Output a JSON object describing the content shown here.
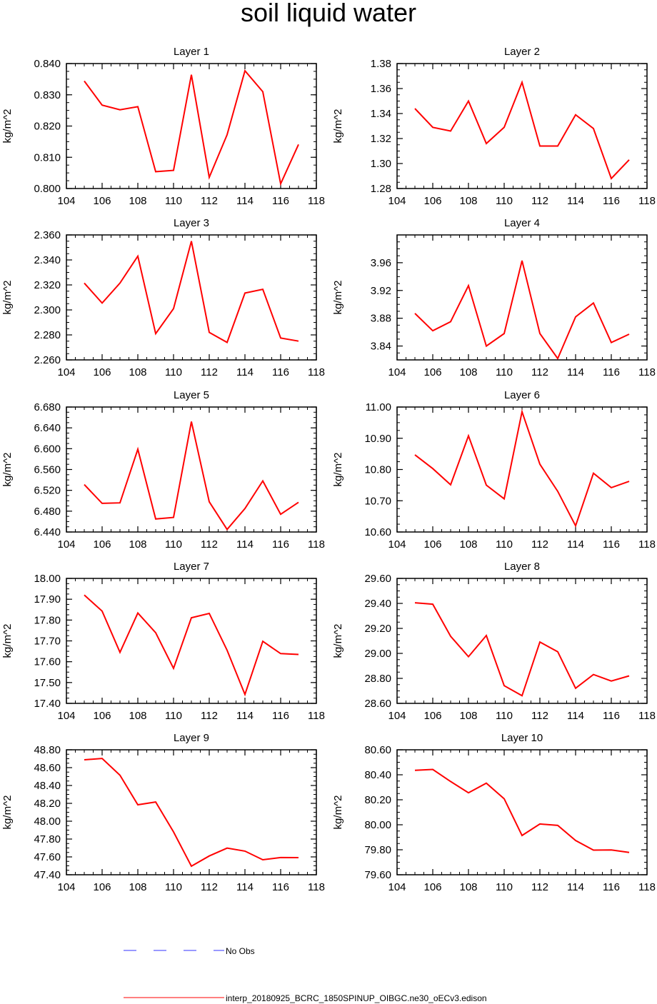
{
  "title": "soil liquid water",
  "legend": {
    "items": [
      {
        "label": "No Obs",
        "color": "#3333ff",
        "style": "dashed"
      },
      {
        "label": "interp_20180925_BCRC_1850SPINUP_OIBGC.ne30_oECv3.edison",
        "color": "#ff0000",
        "style": "solid"
      }
    ]
  },
  "chart_data": [
    {
      "type": "line",
      "title": "Layer 1",
      "ylabel": "kg/m^2",
      "xlim": [
        104,
        118
      ],
      "xticks": [
        104,
        106,
        108,
        110,
        112,
        114,
        116,
        118
      ],
      "ylim": [
        0.8,
        0.84
      ],
      "yticks": [
        0.8,
        0.81,
        0.82,
        0.83,
        0.84
      ],
      "ytick_labels": [
        "0.800",
        "0.810",
        "0.820",
        "0.830",
        "0.840"
      ],
      "x": [
        105,
        106,
        107,
        108,
        109,
        110,
        111,
        112,
        113,
        114,
        115,
        116,
        117
      ],
      "series": [
        {
          "color": "#ff0000",
          "values": [
            0.8344,
            0.8267,
            0.8252,
            0.8262,
            0.8054,
            0.8058,
            0.8364,
            0.8036,
            0.8172,
            0.8377,
            0.831,
            0.8015,
            0.8141
          ]
        }
      ]
    },
    {
      "type": "line",
      "title": "Layer 2",
      "ylabel": "kg/m^2",
      "xlim": [
        104,
        118
      ],
      "xticks": [
        104,
        106,
        108,
        110,
        112,
        114,
        116,
        118
      ],
      "ylim": [
        1.28,
        1.38
      ],
      "yticks": [
        1.28,
        1.3,
        1.32,
        1.34,
        1.36,
        1.38
      ],
      "ytick_labels": [
        "1.28",
        "1.30",
        "1.32",
        "1.34",
        "1.36",
        "1.38"
      ],
      "x": [
        105,
        106,
        107,
        108,
        109,
        110,
        111,
        112,
        113,
        114,
        115,
        116,
        117
      ],
      "series": [
        {
          "color": "#ff0000",
          "values": [
            1.344,
            1.329,
            1.326,
            1.35,
            1.316,
            1.329,
            1.365,
            1.314,
            1.314,
            1.339,
            1.328,
            1.288,
            1.303
          ]
        }
      ]
    },
    {
      "type": "line",
      "title": "Layer 3",
      "ylabel": "kg/m^2",
      "xlim": [
        104,
        118
      ],
      "xticks": [
        104,
        106,
        108,
        110,
        112,
        114,
        116,
        118
      ],
      "ylim": [
        2.26,
        2.36
      ],
      "yticks": [
        2.26,
        2.28,
        2.3,
        2.32,
        2.34,
        2.36
      ],
      "ytick_labels": [
        "2.260",
        "2.280",
        "2.300",
        "2.320",
        "2.340",
        "2.360"
      ],
      "x": [
        105,
        106,
        107,
        108,
        109,
        110,
        111,
        112,
        113,
        114,
        115,
        116,
        117
      ],
      "series": [
        {
          "color": "#ff0000",
          "values": [
            2.3215,
            2.3055,
            2.3215,
            2.343,
            2.281,
            2.301,
            2.355,
            2.282,
            2.274,
            2.3135,
            2.3165,
            2.2775,
            2.275
          ]
        }
      ]
    },
    {
      "type": "line",
      "title": "Layer 4",
      "ylabel": "kg/m^2",
      "xlim": [
        104,
        118
      ],
      "xticks": [
        104,
        106,
        108,
        110,
        112,
        114,
        116,
        118
      ],
      "ylim": [
        3.82,
        4.0
      ],
      "yticks": [
        3.84,
        3.88,
        3.92,
        3.96
      ],
      "ytick_labels": [
        "3.84",
        "3.88",
        "3.92",
        "3.96"
      ],
      "x": [
        105,
        106,
        107,
        108,
        109,
        110,
        111,
        112,
        113,
        114,
        115,
        116,
        117
      ],
      "series": [
        {
          "color": "#ff0000",
          "values": [
            3.887,
            3.862,
            3.875,
            3.927,
            3.84,
            3.858,
            3.963,
            3.858,
            3.822,
            3.882,
            3.902,
            3.845,
            3.857
          ]
        }
      ]
    },
    {
      "type": "line",
      "title": "Layer 5",
      "ylabel": "kg/m^2",
      "xlim": [
        104,
        118
      ],
      "xticks": [
        104,
        106,
        108,
        110,
        112,
        114,
        116,
        118
      ],
      "ylim": [
        6.44,
        6.68
      ],
      "yticks": [
        6.44,
        6.48,
        6.52,
        6.56,
        6.6,
        6.64,
        6.68
      ],
      "ytick_labels": [
        "6.440",
        "6.480",
        "6.520",
        "6.560",
        "6.600",
        "6.640",
        "6.680"
      ],
      "x": [
        105,
        106,
        107,
        108,
        109,
        110,
        111,
        112,
        113,
        114,
        115,
        116,
        117
      ],
      "series": [
        {
          "color": "#ff0000",
          "values": [
            6.531,
            6.495,
            6.496,
            6.599,
            6.465,
            6.468,
            6.652,
            6.498,
            6.445,
            6.485,
            6.538,
            6.474,
            6.497
          ]
        }
      ]
    },
    {
      "type": "line",
      "title": "Layer 6",
      "ylabel": "kg/m^2",
      "xlim": [
        104,
        118
      ],
      "xticks": [
        104,
        106,
        108,
        110,
        112,
        114,
        116,
        118
      ],
      "ylim": [
        10.6,
        11.0
      ],
      "yticks": [
        10.6,
        10.7,
        10.8,
        10.9,
        11.0
      ],
      "ytick_labels": [
        "10.60",
        "10.70",
        "10.80",
        "10.90",
        "11.00"
      ],
      "x": [
        105,
        106,
        107,
        108,
        109,
        110,
        111,
        112,
        113,
        114,
        115,
        116,
        117
      ],
      "series": [
        {
          "color": "#ff0000",
          "values": [
            10.847,
            10.803,
            10.751,
            10.908,
            10.75,
            10.706,
            10.985,
            10.817,
            10.73,
            10.62,
            10.788,
            10.742,
            10.762
          ]
        }
      ]
    },
    {
      "type": "line",
      "title": "Layer 7",
      "ylabel": "kg/m^2",
      "xlim": [
        104,
        118
      ],
      "xticks": [
        104,
        106,
        108,
        110,
        112,
        114,
        116,
        118
      ],
      "ylim": [
        17.4,
        18.0
      ],
      "yticks": [
        17.4,
        17.5,
        17.6,
        17.7,
        17.8,
        17.9,
        18.0
      ],
      "ytick_labels": [
        "17.40",
        "17.50",
        "17.60",
        "17.70",
        "17.80",
        "17.90",
        "18.00"
      ],
      "x": [
        105,
        106,
        107,
        108,
        109,
        110,
        111,
        112,
        113,
        114,
        115,
        116,
        117
      ],
      "series": [
        {
          "color": "#ff0000",
          "values": [
            17.92,
            17.843,
            17.645,
            17.834,
            17.739,
            17.568,
            17.811,
            17.832,
            17.655,
            17.443,
            17.698,
            17.639,
            17.635
          ]
        }
      ]
    },
    {
      "type": "line",
      "title": "Layer 8",
      "ylabel": "kg/m^2",
      "xlim": [
        104,
        118
      ],
      "xticks": [
        104,
        106,
        108,
        110,
        112,
        114,
        116,
        118
      ],
      "ylim": [
        28.6,
        29.6
      ],
      "yticks": [
        28.6,
        28.8,
        29.0,
        29.2,
        29.4,
        29.6
      ],
      "ytick_labels": [
        "28.60",
        "28.80",
        "29.00",
        "29.20",
        "29.40",
        "29.60"
      ],
      "x": [
        105,
        106,
        107,
        108,
        109,
        110,
        111,
        112,
        113,
        114,
        115,
        116,
        117
      ],
      "series": [
        {
          "color": "#ff0000",
          "values": [
            29.405,
            29.394,
            29.137,
            28.974,
            29.143,
            28.742,
            28.661,
            29.091,
            29.013,
            28.721,
            28.831,
            28.779,
            28.82
          ]
        }
      ]
    },
    {
      "type": "line",
      "title": "Layer 9",
      "ylabel": "kg/m^2",
      "xlim": [
        104,
        118
      ],
      "xticks": [
        104,
        106,
        108,
        110,
        112,
        114,
        116,
        118
      ],
      "ylim": [
        47.4,
        48.8
      ],
      "yticks": [
        47.4,
        47.6,
        47.8,
        48.0,
        48.2,
        48.4,
        48.6,
        48.8
      ],
      "ytick_labels": [
        "47.40",
        "47.60",
        "47.80",
        "48.00",
        "48.20",
        "48.40",
        "48.60",
        "48.80"
      ],
      "x": [
        105,
        106,
        107,
        108,
        109,
        110,
        111,
        112,
        113,
        114,
        115,
        116,
        117
      ],
      "series": [
        {
          "color": "#ff0000",
          "values": [
            48.688,
            48.703,
            48.515,
            48.184,
            48.215,
            47.88,
            47.496,
            47.61,
            47.698,
            47.665,
            47.568,
            47.593,
            47.592
          ]
        }
      ]
    },
    {
      "type": "line",
      "title": "Layer 10",
      "ylabel": "kg/m^2",
      "xlim": [
        104,
        118
      ],
      "xticks": [
        104,
        106,
        108,
        110,
        112,
        114,
        116,
        118
      ],
      "ylim": [
        79.6,
        80.6
      ],
      "yticks": [
        79.6,
        79.8,
        80.0,
        80.2,
        80.4,
        80.6
      ],
      "ytick_labels": [
        "79.60",
        "79.80",
        "80.00",
        "80.20",
        "80.40",
        "80.60"
      ],
      "x": [
        105,
        106,
        107,
        108,
        109,
        110,
        111,
        112,
        113,
        114,
        115,
        116,
        117
      ],
      "series": [
        {
          "color": "#ff0000",
          "values": [
            80.436,
            80.443,
            80.346,
            80.256,
            80.333,
            80.208,
            79.914,
            80.006,
            79.995,
            79.874,
            79.797,
            79.799,
            79.778
          ]
        }
      ]
    }
  ]
}
